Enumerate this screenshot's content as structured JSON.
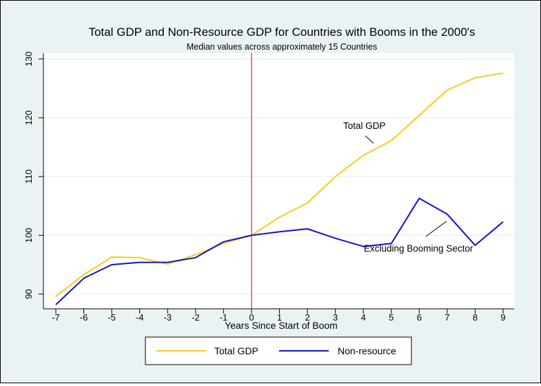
{
  "chart_data": {
    "type": "line",
    "title": "Total GDP and Non-Resource GDP for Countries with Booms in the 2000's",
    "subtitle": "Median values across approximately 15 Countries",
    "xlabel": "Years Since Start of Boom",
    "ylabel": "",
    "x": [
      -7,
      -6,
      -5,
      -4,
      -3,
      -2,
      -1,
      0,
      1,
      2,
      3,
      4,
      5,
      6,
      7,
      8,
      9
    ],
    "x_ticks": [
      "-7",
      "-6",
      "-5",
      "-4",
      "-3",
      "-2",
      "-1",
      "0",
      "1",
      "2",
      "3",
      "4",
      "5",
      "6",
      "7",
      "8",
      "9"
    ],
    "y_ticks": [
      "90",
      "100",
      "110",
      "120",
      "130"
    ],
    "xlim": [
      -7,
      9
    ],
    "ylim": [
      87.5,
      131
    ],
    "grid": "horizontal",
    "vline_x": 0,
    "series": [
      {
        "name": "Total GDP",
        "color": "#f5cd1d",
        "values": [
          89.6,
          93.3,
          96.3,
          96.2,
          95.1,
          96.7,
          98.6,
          100,
          103.1,
          105.5,
          110.0,
          113.6,
          116.1,
          120.4,
          124.7,
          126.8,
          127.6
        ]
      },
      {
        "name": "Non-resource",
        "color": "#1111c9",
        "values": [
          88.2,
          92.7,
          95.0,
          95.4,
          95.4,
          96.2,
          98.9,
          100,
          100.6,
          101.1,
          99.5,
          98.1,
          98.6,
          106.3,
          103.6,
          98.3,
          102.3
        ]
      }
    ],
    "annotations": [
      {
        "text": "Total GDP",
        "series": "Total GDP"
      },
      {
        "text": "Excluding Booming Sector",
        "series": "Non-resource"
      }
    ],
    "vline_color": "#e0506b",
    "legend": {
      "placement": "bottom",
      "entries": [
        "Total GDP",
        "Non-resource"
      ]
    }
  }
}
